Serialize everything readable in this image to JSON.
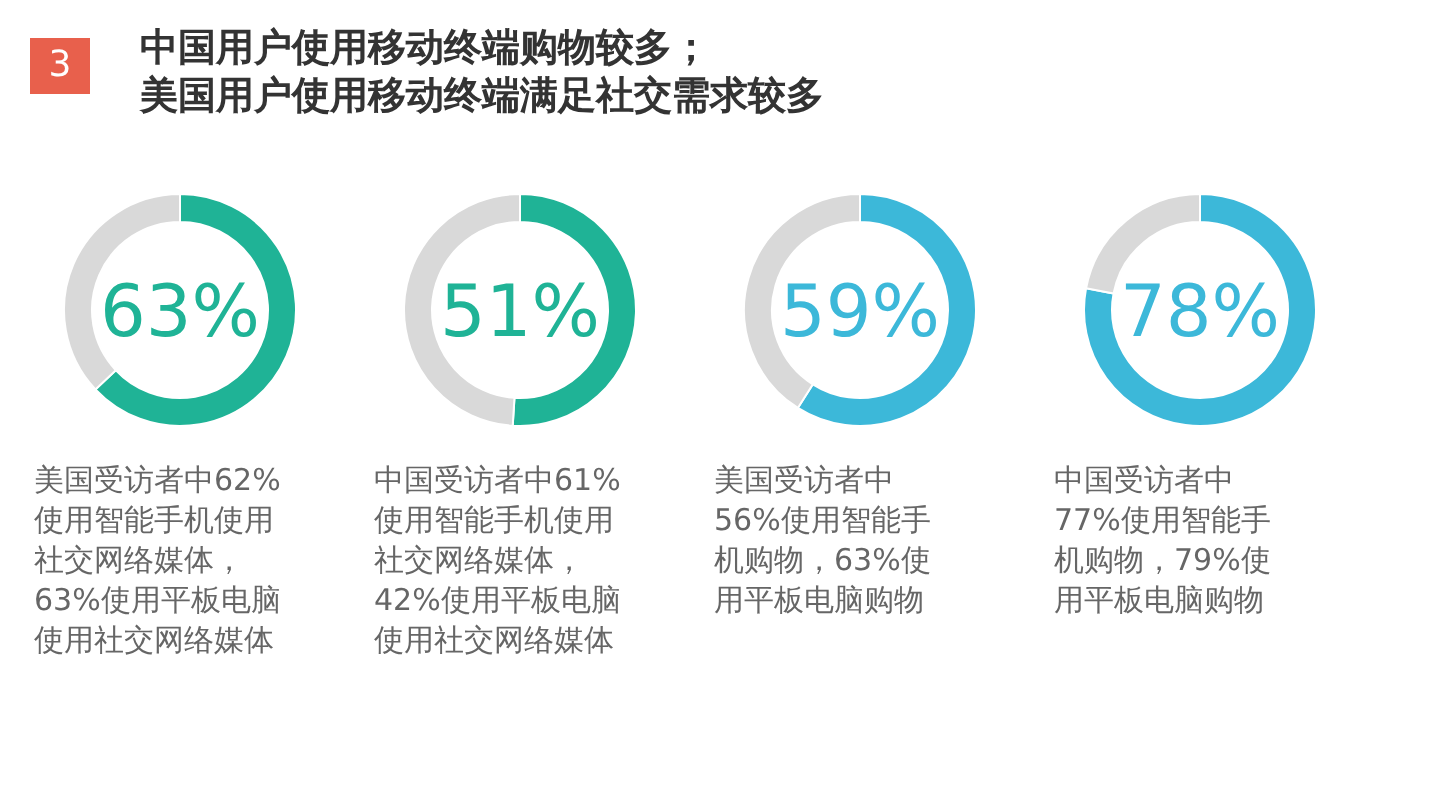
{
  "chart_data": [
    {
      "type": "donut",
      "title": "中国用户使用移动终端购物较多；美国用户使用移动终端满足社交需求较多",
      "categories": [
        null,
        null
      ],
      "values": [
        63,
        37
      ],
      "colors": [
        "#1fb396",
        "#d9d9d9"
      ],
      "value_labels": [
        "63%",
        null
      ],
      "annotations": [
        "3",
        "美国受访者中62%使用智能手机使用社交网络媒体，63%使用平板电脑使用社交网络媒体"
      ]
    },
    {
      "type": "donut",
      "categories": [
        null,
        null
      ],
      "values": [
        51,
        49
      ],
      "colors": [
        "#1fb396",
        "#d9d9d9"
      ],
      "value_labels": [
        "51%",
        null
      ],
      "annotations": [
        "中国受访者中61%使用智能手机使用社交网络媒体，42%使用平板电脑使用社交网络媒体"
      ]
    },
    {
      "type": "donut",
      "categories": [
        null,
        null
      ],
      "values": [
        59,
        41
      ],
      "colors": [
        "#3cb8d9",
        "#d9d9d9"
      ],
      "value_labels": [
        "59%",
        null
      ],
      "annotations": [
        "美国受访者中56%使用智能手机购物，63%使用平板电脑购物"
      ]
    },
    {
      "type": "donut",
      "categories": [
        null,
        null
      ],
      "values": [
        78,
        22
      ],
      "colors": [
        "#3cb8d9",
        "#d9d9d9"
      ],
      "value_labels": [
        "78%",
        null
      ],
      "annotations": [
        "中国受访者中77%使用智能手机购物，79%使用平板电脑购物"
      ]
    }
  ]
}
